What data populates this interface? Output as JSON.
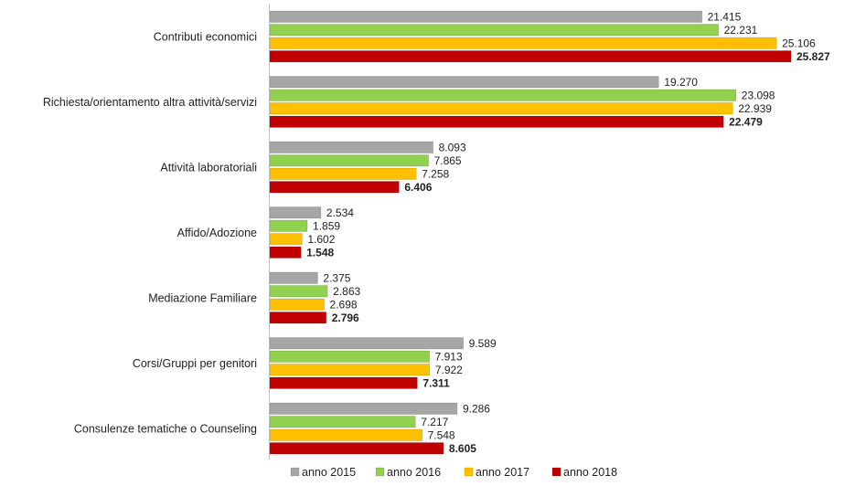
{
  "chart_data": {
    "type": "bar",
    "orientation": "horizontal",
    "categories": [
      "Contributi economici",
      "Richiesta/orientamento altra attività/servizi",
      "Attività laboratoriali",
      "Affido/Adozione",
      "Mediazione Familiare",
      "Corsi/Gruppi per genitori",
      "Consulenze tematiche o Counseling"
    ],
    "series": [
      {
        "name": "anno 2015",
        "color": "#A6A6A6",
        "values": [
          21415,
          19270,
          8093,
          2534,
          2375,
          9589,
          9286
        ]
      },
      {
        "name": "anno 2016",
        "color": "#92D050",
        "values": [
          22231,
          23098,
          7865,
          1859,
          2863,
          7913,
          7217
        ]
      },
      {
        "name": "anno 2017",
        "color": "#FFC000",
        "values": [
          25106,
          22939,
          7258,
          1602,
          2698,
          7922,
          7548
        ]
      },
      {
        "name": "anno 2018",
        "color": "#C00000",
        "values": [
          25827,
          22479,
          6406,
          1548,
          2796,
          7311,
          8605
        ]
      }
    ],
    "value_labels": [
      [
        "21.415",
        "19.270",
        "8.093",
        "2.534",
        "2.375",
        "9.589",
        "9.286"
      ],
      [
        "22.231",
        "23.098",
        "7.865",
        "1.859",
        "2.863",
        "7.913",
        "7.217"
      ],
      [
        "25.106",
        "22.939",
        "7.258",
        "1.602",
        "2.698",
        "7.922",
        "7.548"
      ],
      [
        "25.827",
        "22.479",
        "6.406",
        "1.548",
        "2.796",
        "7.311",
        "8.605"
      ]
    ],
    "bold_series": "anno 2018",
    "title": "",
    "xlabel": "",
    "ylabel": "",
    "xlim": [
      0,
      26000
    ],
    "grid": false,
    "legend": "bottom"
  }
}
